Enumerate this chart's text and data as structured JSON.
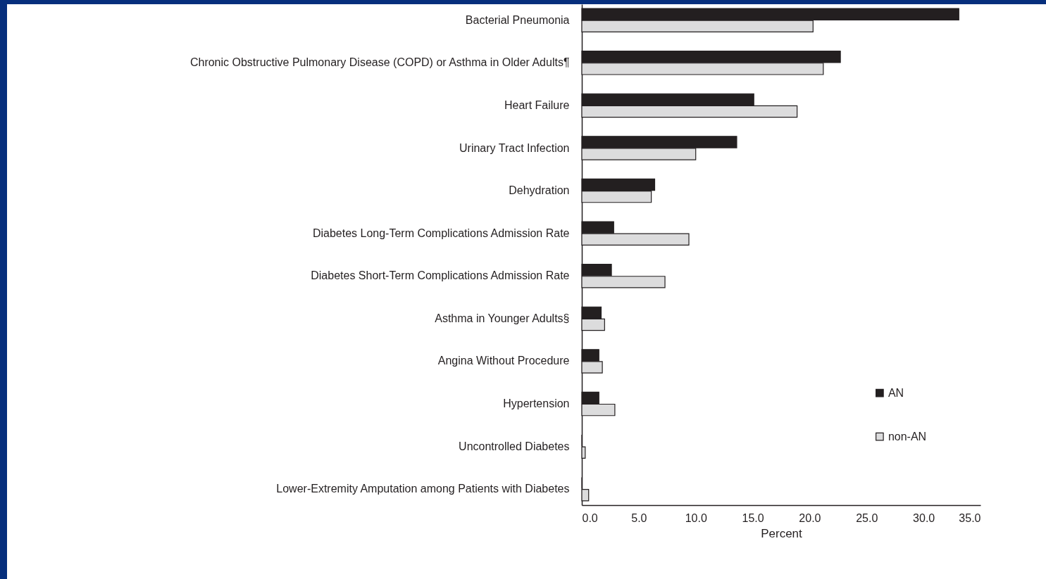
{
  "chart_data": {
    "type": "bar",
    "orientation": "horizontal",
    "xlabel": "Percent",
    "categories": [
      "Bacterial Pneumonia",
      "Chronic Obstructive Pulmonary Disease (COPD) or Asthma in Older Adults¶",
      "Heart Failure",
      "Urinary Tract Infection",
      "Dehydration",
      "Diabetes Long-Term Complications Admission Rate",
      "Diabetes Short-Term Complications Admission Rate",
      "Asthma in Younger Adults§",
      "Angina Without Procedure",
      "Hypertension",
      "Uncontrolled Diabetes",
      "Lower-Extremity Amputation among Patients with Diabetes"
    ],
    "series": [
      {
        "name": "AN",
        "color": "#231f20",
        "values": [
          33.1,
          22.7,
          15.1,
          13.6,
          6.4,
          2.8,
          2.6,
          1.7,
          1.5,
          1.5,
          0,
          0
        ]
      },
      {
        "name": "non-AN",
        "color": "#dcdcdd",
        "values": [
          20.3,
          21.2,
          18.9,
          10.0,
          6.1,
          9.4,
          7.3,
          2.0,
          1.8,
          2.9,
          0.3,
          0.6
        ]
      }
    ],
    "xlim": [
      0,
      35
    ],
    "xticks": [
      {
        "value": 0,
        "label": "0.0"
      },
      {
        "value": 5,
        "label": "5.0"
      },
      {
        "value": 10,
        "label": "10.0"
      },
      {
        "value": 15,
        "label": "15.0"
      },
      {
        "value": 20,
        "label": "20.0"
      },
      {
        "value": 25,
        "label": "25.0"
      },
      {
        "value": 30,
        "label": "30.0"
      },
      {
        "value": 35,
        "label": "35.0"
      }
    ],
    "grid": false,
    "legend": "right"
  }
}
